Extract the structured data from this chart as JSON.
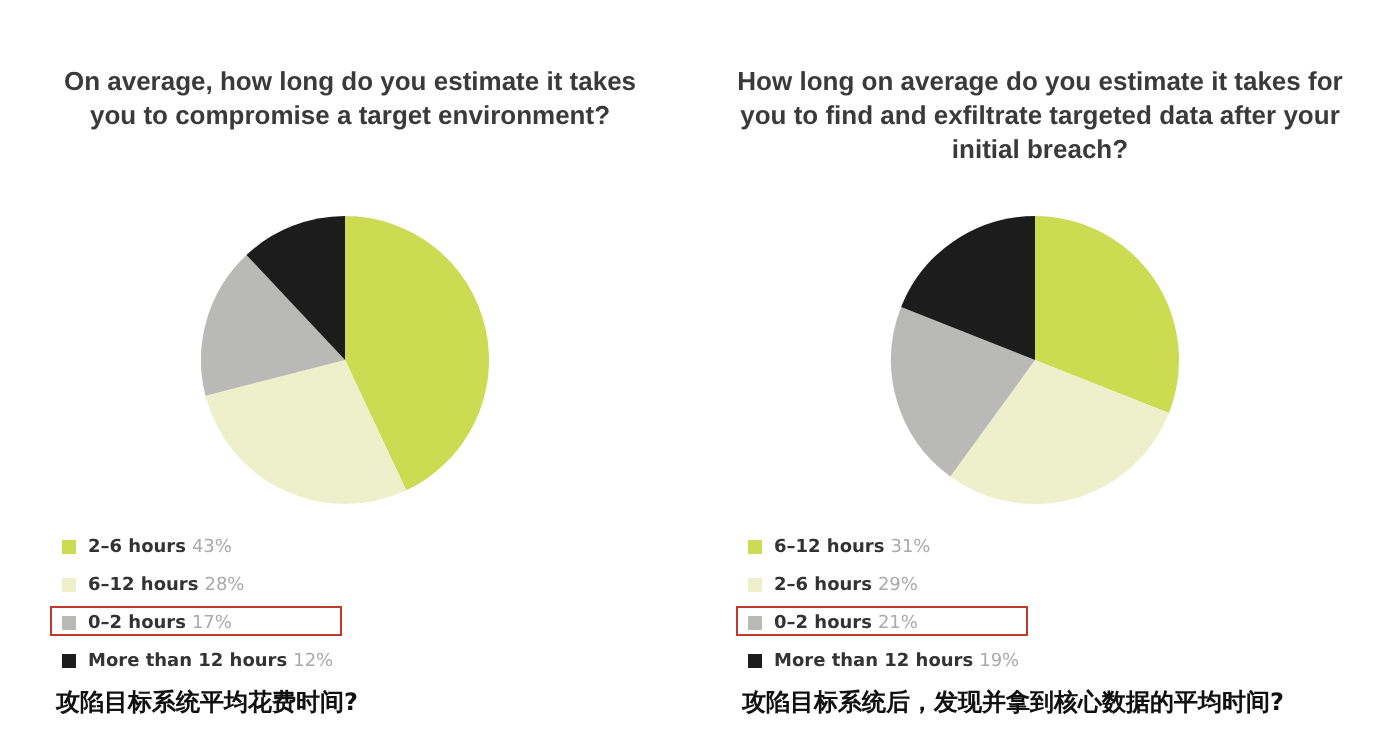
{
  "chart_data": [
    {
      "type": "pie",
      "title": "On average, how long do you estimate it takes you to compromise a target environment?",
      "categories": [
        "2–6 hours",
        "6–12 hours",
        "0–2 hours",
        "More than 12 hours"
      ],
      "values": [
        43,
        28,
        17,
        12
      ],
      "value_labels": [
        "43%",
        "28%",
        "17%",
        "12%"
      ],
      "colors": [
        "#cbdb52",
        "#eef0cc",
        "#b9b9b7",
        "#1c1c1c"
      ],
      "legend": "bottom left",
      "annotations": [
        "攻陷目标系统平均花费时间?"
      ]
    },
    {
      "type": "pie",
      "title": "How long on average do you estimate it takes for you to find and exfiltrate targeted data after your initial breach?",
      "categories": [
        "6–12 hours",
        "2–6 hours",
        "0–2 hours",
        "More than 12 hours"
      ],
      "values": [
        31,
        29,
        21,
        19
      ],
      "value_labels": [
        "31%",
        "29%",
        "21%",
        "19%"
      ],
      "colors": [
        "#cbdb52",
        "#eef0cc",
        "#b9b9b7",
        "#1c1c1c"
      ],
      "legend": "bottom left",
      "annotations": [
        "攻陷目标系统后，发现并拿到核心数据的平均时间?"
      ]
    }
  ]
}
